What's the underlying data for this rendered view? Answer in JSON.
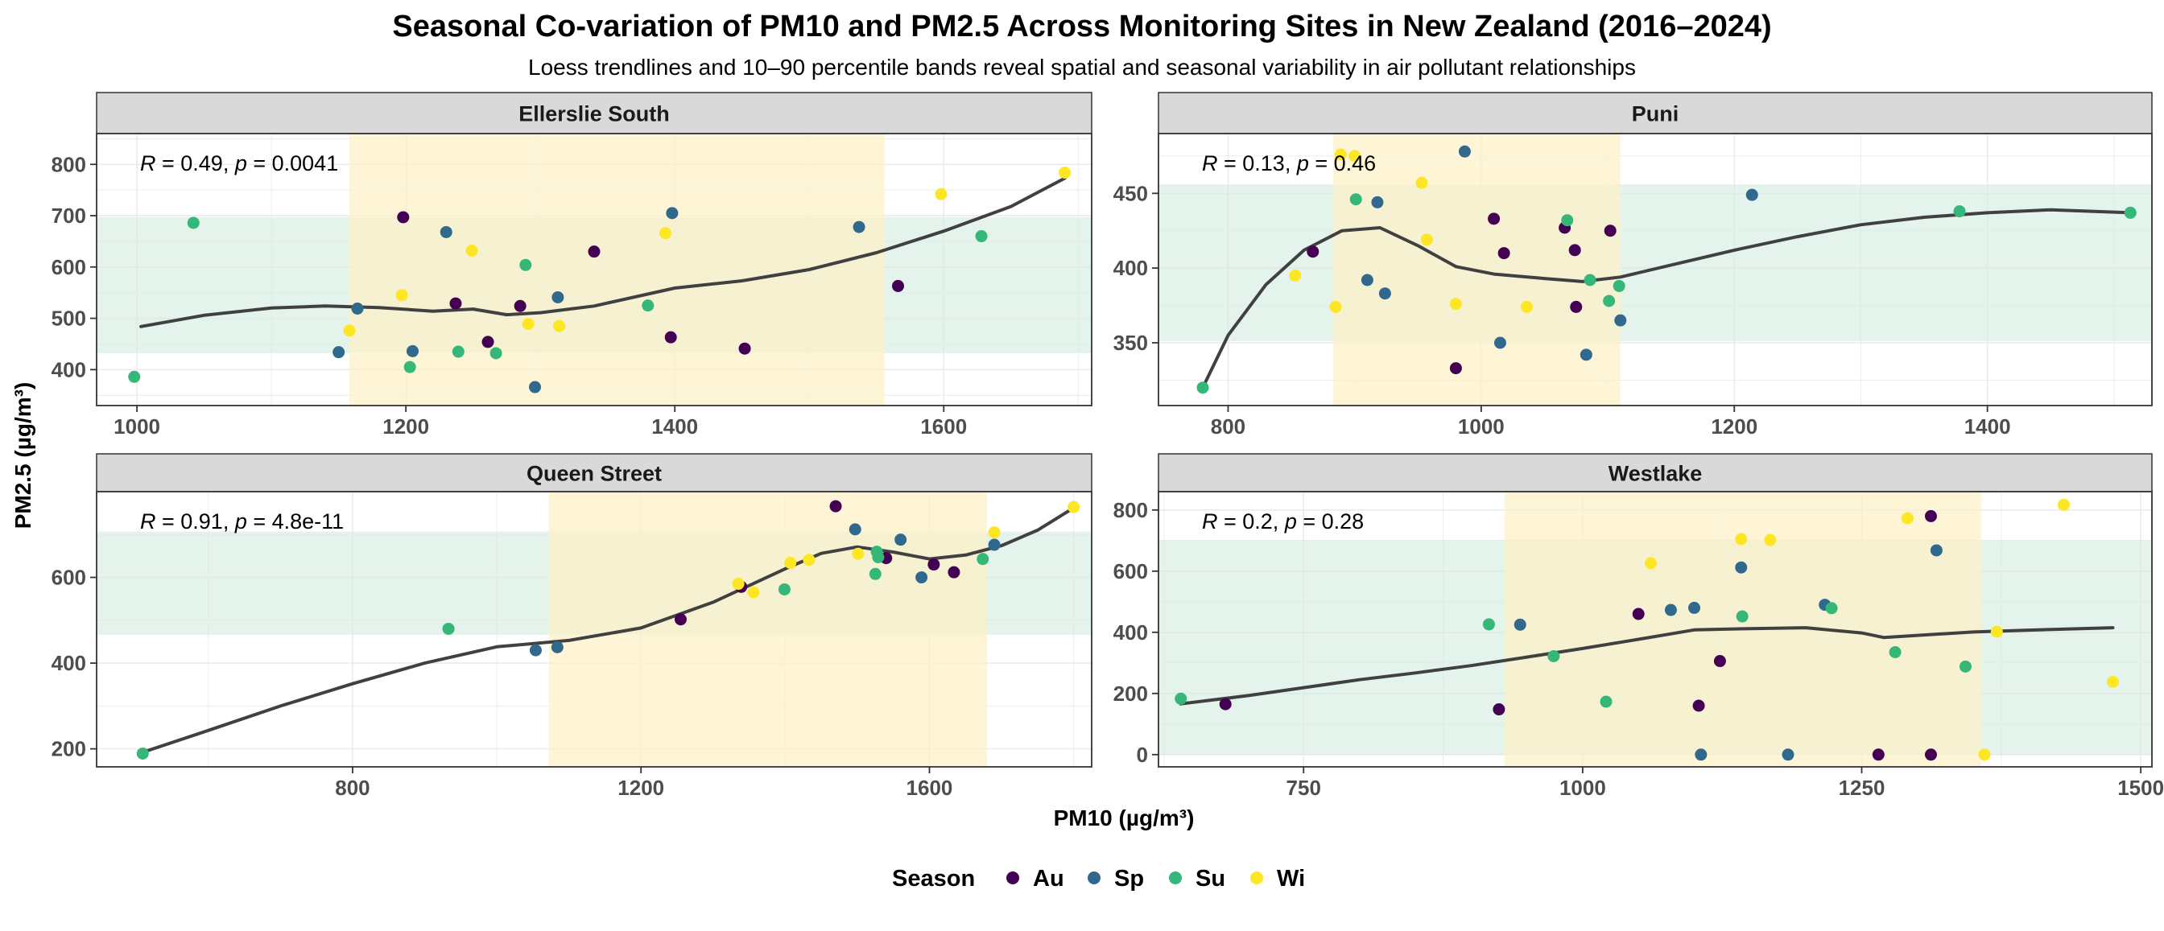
{
  "title": "Seasonal Co-variation of  PM10  and  PM2.5  Across Monitoring Sites in New Zealand (2016–2024)",
  "subtitle": "Loess trendlines and 10–90 percentile bands reveal spatial and seasonal variability in air pollutant relationships",
  "xlabel": "PM10 (µg/m³)",
  "ylabel": "PM2.5 (µg/m³)",
  "legend": {
    "title": "Season",
    "position": "bottom",
    "items": [
      {
        "key": "Au",
        "label": "Au",
        "color": "#440154"
      },
      {
        "key": "Sp",
        "label": "Sp",
        "color": "#31688e"
      },
      {
        "key": "Su",
        "label": "Su",
        "color": "#35b779"
      },
      {
        "key": "Wi",
        "label": "Wi",
        "color": "#fde725"
      }
    ]
  },
  "colors": {
    "strip": "#d9d9d9",
    "trend": "#404040",
    "band_x": "#fdf1c6",
    "band_y": "#d6ece0"
  },
  "chart_data": [
    {
      "type": "scatter",
      "facet": "Ellerslie South",
      "stat": {
        "r": "0.49",
        "p": "0.0041"
      },
      "xlim": [
        970,
        1710
      ],
      "ylim": [
        330,
        860
      ],
      "xticks": [
        1000,
        1200,
        1400,
        1600
      ],
      "yticks": [
        400,
        500,
        600,
        700,
        800
      ],
      "band_x": [
        1158,
        1556
      ],
      "band_y": [
        432,
        697
      ],
      "points": [
        {
          "season": "Au",
          "x": 1198,
          "y": 697
        },
        {
          "season": "Au",
          "x": 1237,
          "y": 529
        },
        {
          "season": "Au",
          "x": 1261,
          "y": 454
        },
        {
          "season": "Au",
          "x": 1285,
          "y": 524
        },
        {
          "season": "Au",
          "x": 1340,
          "y": 630
        },
        {
          "season": "Au",
          "x": 1397,
          "y": 463
        },
        {
          "season": "Au",
          "x": 1452,
          "y": 441
        },
        {
          "season": "Au",
          "x": 1566,
          "y": 563
        },
        {
          "season": "Sp",
          "x": 1150,
          "y": 434
        },
        {
          "season": "Sp",
          "x": 1164,
          "y": 519
        },
        {
          "season": "Sp",
          "x": 1205,
          "y": 436
        },
        {
          "season": "Sp",
          "x": 1230,
          "y": 668
        },
        {
          "season": "Sp",
          "x": 1296,
          "y": 366
        },
        {
          "season": "Sp",
          "x": 1313,
          "y": 541
        },
        {
          "season": "Sp",
          "x": 1398,
          "y": 705
        },
        {
          "season": "Sp",
          "x": 1537,
          "y": 678
        },
        {
          "season": "Su",
          "x": 998,
          "y": 386
        },
        {
          "season": "Su",
          "x": 1042,
          "y": 686
        },
        {
          "season": "Su",
          "x": 1203,
          "y": 405
        },
        {
          "season": "Su",
          "x": 1239,
          "y": 435
        },
        {
          "season": "Su",
          "x": 1267,
          "y": 432
        },
        {
          "season": "Su",
          "x": 1289,
          "y": 604
        },
        {
          "season": "Su",
          "x": 1380,
          "y": 525
        },
        {
          "season": "Su",
          "x": 1628,
          "y": 660
        },
        {
          "season": "Wi",
          "x": 1158,
          "y": 476
        },
        {
          "season": "Wi",
          "x": 1197,
          "y": 545
        },
        {
          "season": "Wi",
          "x": 1249,
          "y": 632
        },
        {
          "season": "Wi",
          "x": 1291,
          "y": 489
        },
        {
          "season": "Wi",
          "x": 1314,
          "y": 485
        },
        {
          "season": "Wi",
          "x": 1393,
          "y": 666
        },
        {
          "season": "Wi",
          "x": 1598,
          "y": 742
        },
        {
          "season": "Wi",
          "x": 1690,
          "y": 784
        }
      ],
      "trend": [
        [
          1003,
          484
        ],
        [
          1050,
          506
        ],
        [
          1100,
          520
        ],
        [
          1140,
          524
        ],
        [
          1180,
          521
        ],
        [
          1220,
          514
        ],
        [
          1250,
          518
        ],
        [
          1275,
          507
        ],
        [
          1300,
          511
        ],
        [
          1340,
          524
        ],
        [
          1400,
          559
        ],
        [
          1450,
          573
        ],
        [
          1500,
          595
        ],
        [
          1550,
          628
        ],
        [
          1600,
          670
        ],
        [
          1650,
          718
        ],
        [
          1690,
          773
        ]
      ]
    },
    {
      "type": "scatter",
      "facet": "Puni",
      "stat": {
        "r": "0.13",
        "p": "0.46"
      },
      "xlim": [
        745,
        1530
      ],
      "ylim": [
        308,
        490
      ],
      "xticks": [
        800,
        1000,
        1200,
        1400
      ],
      "yticks": [
        350,
        400,
        450
      ],
      "band_x": [
        883,
        1110
      ],
      "band_y": [
        351,
        456
      ],
      "points": [
        {
          "season": "Au",
          "x": 867,
          "y": 411
        },
        {
          "season": "Au",
          "x": 980,
          "y": 333
        },
        {
          "season": "Au",
          "x": 1010,
          "y": 433
        },
        {
          "season": "Au",
          "x": 1018,
          "y": 410
        },
        {
          "season": "Au",
          "x": 1066,
          "y": 427
        },
        {
          "season": "Au",
          "x": 1074,
          "y": 412
        },
        {
          "season": "Au",
          "x": 1075,
          "y": 374
        },
        {
          "season": "Au",
          "x": 1102,
          "y": 425
        },
        {
          "season": "Sp",
          "x": 910,
          "y": 392
        },
        {
          "season": "Sp",
          "x": 918,
          "y": 444
        },
        {
          "season": "Sp",
          "x": 924,
          "y": 383
        },
        {
          "season": "Sp",
          "x": 987,
          "y": 478
        },
        {
          "season": "Sp",
          "x": 1015,
          "y": 350
        },
        {
          "season": "Sp",
          "x": 1083,
          "y": 342
        },
        {
          "season": "Sp",
          "x": 1110,
          "y": 365
        },
        {
          "season": "Sp",
          "x": 1214,
          "y": 449
        },
        {
          "season": "Su",
          "x": 780,
          "y": 320
        },
        {
          "season": "Su",
          "x": 901,
          "y": 446
        },
        {
          "season": "Su",
          "x": 1068,
          "y": 432
        },
        {
          "season": "Su",
          "x": 1086,
          "y": 392
        },
        {
          "season": "Su",
          "x": 1101,
          "y": 378
        },
        {
          "season": "Su",
          "x": 1109,
          "y": 388
        },
        {
          "season": "Su",
          "x": 1378,
          "y": 438
        },
        {
          "season": "Su",
          "x": 1513,
          "y": 437
        },
        {
          "season": "Wi",
          "x": 853,
          "y": 395
        },
        {
          "season": "Wi",
          "x": 885,
          "y": 374
        },
        {
          "season": "Wi",
          "x": 889,
          "y": 476
        },
        {
          "season": "Wi",
          "x": 900,
          "y": 475
        },
        {
          "season": "Wi",
          "x": 953,
          "y": 457
        },
        {
          "season": "Wi",
          "x": 957,
          "y": 419
        },
        {
          "season": "Wi",
          "x": 980,
          "y": 376
        },
        {
          "season": "Wi",
          "x": 1036,
          "y": 374
        }
      ],
      "trend": [
        [
          780,
          320
        ],
        [
          800,
          355
        ],
        [
          830,
          389
        ],
        [
          860,
          412
        ],
        [
          890,
          425
        ],
        [
          920,
          427
        ],
        [
          950,
          415
        ],
        [
          980,
          401
        ],
        [
          1010,
          396
        ],
        [
          1050,
          393
        ],
        [
          1080,
          391
        ],
        [
          1110,
          394
        ],
        [
          1150,
          402
        ],
        [
          1200,
          412
        ],
        [
          1250,
          421
        ],
        [
          1300,
          429
        ],
        [
          1350,
          434
        ],
        [
          1400,
          437
        ],
        [
          1450,
          439
        ],
        [
          1513,
          437
        ]
      ]
    },
    {
      "type": "scatter",
      "facet": "Queen Street",
      "stat": {
        "r": "0.91",
        "p": "4.8e-11"
      },
      "xlim": [
        445,
        1825
      ],
      "ylim": [
        158,
        800
      ],
      "xticks": [
        800,
        1200,
        1600
      ],
      "yticks": [
        200,
        400,
        600
      ],
      "band_x": [
        1072,
        1680
      ],
      "band_y": [
        466,
        707
      ],
      "points": [
        {
          "season": "Au",
          "x": 1255,
          "y": 502
        },
        {
          "season": "Au",
          "x": 1339,
          "y": 578
        },
        {
          "season": "Au",
          "x": 1470,
          "y": 766
        },
        {
          "season": "Au",
          "x": 1540,
          "y": 645
        },
        {
          "season": "Au",
          "x": 1606,
          "y": 630
        },
        {
          "season": "Au",
          "x": 1634,
          "y": 612
        },
        {
          "season": "Sp",
          "x": 1054,
          "y": 430
        },
        {
          "season": "Sp",
          "x": 1084,
          "y": 437
        },
        {
          "season": "Sp",
          "x": 1497,
          "y": 712
        },
        {
          "season": "Sp",
          "x": 1560,
          "y": 688
        },
        {
          "season": "Sp",
          "x": 1589,
          "y": 600
        },
        {
          "season": "Sp",
          "x": 1690,
          "y": 676
        },
        {
          "season": "Su",
          "x": 509,
          "y": 189
        },
        {
          "season": "Su",
          "x": 933,
          "y": 480
        },
        {
          "season": "Su",
          "x": 1399,
          "y": 572
        },
        {
          "season": "Su",
          "x": 1525,
          "y": 608
        },
        {
          "season": "Su",
          "x": 1527,
          "y": 660
        },
        {
          "season": "Su",
          "x": 1529,
          "y": 647
        },
        {
          "season": "Su",
          "x": 1674,
          "y": 643
        },
        {
          "season": "Wi",
          "x": 1335,
          "y": 585
        },
        {
          "season": "Wi",
          "x": 1356,
          "y": 565
        },
        {
          "season": "Wi",
          "x": 1407,
          "y": 634
        },
        {
          "season": "Wi",
          "x": 1433,
          "y": 641
        },
        {
          "season": "Wi",
          "x": 1501,
          "y": 655
        },
        {
          "season": "Wi",
          "x": 1690,
          "y": 705
        },
        {
          "season": "Wi",
          "x": 1800,
          "y": 764
        }
      ],
      "trend": [
        [
          509,
          192
        ],
        [
          600,
          243
        ],
        [
          700,
          300
        ],
        [
          800,
          352
        ],
        [
          900,
          400
        ],
        [
          1000,
          438
        ],
        [
          1100,
          453
        ],
        [
          1200,
          482
        ],
        [
          1300,
          542
        ],
        [
          1400,
          620
        ],
        [
          1450,
          656
        ],
        [
          1500,
          671
        ],
        [
          1550,
          659
        ],
        [
          1600,
          643
        ],
        [
          1650,
          652
        ],
        [
          1700,
          674
        ],
        [
          1750,
          710
        ],
        [
          1800,
          762
        ]
      ]
    },
    {
      "type": "scatter",
      "facet": "Westlake",
      "stat": {
        "r": "0.2",
        "p": "0.28"
      },
      "xlim": [
        620,
        1510
      ],
      "ylim": [
        -40,
        860
      ],
      "xticks": [
        750,
        1000,
        1250,
        1500
      ],
      "yticks": [
        0,
        200,
        400,
        600,
        800
      ],
      "band_x": [
        930,
        1357
      ],
      "band_y": [
        0,
        702
      ],
      "points": [
        {
          "season": "Au",
          "x": 680,
          "y": 165
        },
        {
          "season": "Au",
          "x": 925,
          "y": 148
        },
        {
          "season": "Au",
          "x": 1050,
          "y": 460
        },
        {
          "season": "Au",
          "x": 1104,
          "y": 160
        },
        {
          "season": "Au",
          "x": 1123,
          "y": 306
        },
        {
          "season": "Au",
          "x": 1265,
          "y": 0
        },
        {
          "season": "Au",
          "x": 1312,
          "y": 0
        },
        {
          "season": "Au",
          "x": 1312,
          "y": 780
        },
        {
          "season": "Sp",
          "x": 944,
          "y": 425
        },
        {
          "season": "Sp",
          "x": 1079,
          "y": 473
        },
        {
          "season": "Sp",
          "x": 1100,
          "y": 480
        },
        {
          "season": "Sp",
          "x": 1106,
          "y": 0
        },
        {
          "season": "Sp",
          "x": 1142,
          "y": 612
        },
        {
          "season": "Sp",
          "x": 1217,
          "y": 490
        },
        {
          "season": "Sp",
          "x": 1184,
          "y": 0
        },
        {
          "season": "Sp",
          "x": 1317,
          "y": 668
        },
        {
          "season": "Su",
          "x": 640,
          "y": 183
        },
        {
          "season": "Su",
          "x": 916,
          "y": 426
        },
        {
          "season": "Su",
          "x": 974,
          "y": 322
        },
        {
          "season": "Su",
          "x": 1021,
          "y": 173
        },
        {
          "season": "Su",
          "x": 1143,
          "y": 452
        },
        {
          "season": "Su",
          "x": 1223,
          "y": 479
        },
        {
          "season": "Su",
          "x": 1280,
          "y": 335
        },
        {
          "season": "Su",
          "x": 1343,
          "y": 288
        },
        {
          "season": "Wi",
          "x": 1061,
          "y": 626
        },
        {
          "season": "Wi",
          "x": 1142,
          "y": 705
        },
        {
          "season": "Wi",
          "x": 1168,
          "y": 702
        },
        {
          "season": "Wi",
          "x": 1291,
          "y": 773
        },
        {
          "season": "Wi",
          "x": 1360,
          "y": 0
        },
        {
          "season": "Wi",
          "x": 1371,
          "y": 402
        },
        {
          "season": "Wi",
          "x": 1431,
          "y": 817
        },
        {
          "season": "Wi",
          "x": 1475,
          "y": 238
        }
      ],
      "trend": [
        [
          640,
          166
        ],
        [
          700,
          193
        ],
        [
          750,
          219
        ],
        [
          800,
          245
        ],
        [
          850,
          267
        ],
        [
          900,
          291
        ],
        [
          950,
          319
        ],
        [
          1000,
          347
        ],
        [
          1050,
          377
        ],
        [
          1100,
          408
        ],
        [
          1150,
          412
        ],
        [
          1200,
          415
        ],
        [
          1250,
          398
        ],
        [
          1270,
          383
        ],
        [
          1300,
          390
        ],
        [
          1350,
          401
        ],
        [
          1400,
          407
        ],
        [
          1475,
          415
        ]
      ]
    }
  ]
}
